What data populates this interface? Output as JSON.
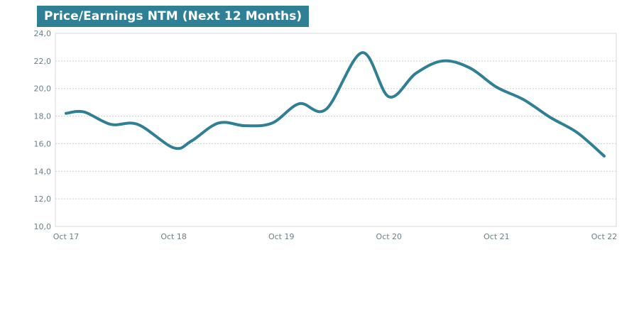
{
  "colors": {
    "accent": "#2f7f95",
    "line": "#2f7f95",
    "grid": "#cfcfcf",
    "frame": "#d8d8d8",
    "tick_text": "#6b7f86"
  },
  "chart_data": {
    "type": "line",
    "title": "Price/Earnings NTM (Next 12 Months)",
    "xlabel": "",
    "ylabel": "",
    "ylim": [
      10,
      24
    ],
    "y_ticks": [
      10,
      12,
      14,
      16,
      18,
      20,
      22,
      24
    ],
    "y_tick_labels": [
      "10,0",
      "12,0",
      "14,0",
      "16,0",
      "18,0",
      "20,0",
      "22,0",
      "24,0"
    ],
    "x_ticks": [
      "Oct 17",
      "Oct 18",
      "Oct 19",
      "Oct 20",
      "Oct 21",
      "Oct 22"
    ],
    "grid": true,
    "legend": "none",
    "series": [
      {
        "x": [
          "2017-10",
          "2017-12",
          "2018-03",
          "2018-06",
          "2018-10",
          "2018-12",
          "2019-03",
          "2019-06",
          "2019-09",
          "2019-12",
          "2020-03",
          "2020-07",
          "2020-10",
          "2021-01",
          "2021-04",
          "2021-07",
          "2021-10",
          "2022-01",
          "2022-04",
          "2022-07",
          "2022-10"
        ],
        "values": [
          18.2,
          18.3,
          17.4,
          17.4,
          15.7,
          16.2,
          17.5,
          17.3,
          17.5,
          18.9,
          18.5,
          22.6,
          19.4,
          21.1,
          22.0,
          21.5,
          20.1,
          19.2,
          17.9,
          16.8,
          15.1
        ]
      }
    ]
  }
}
